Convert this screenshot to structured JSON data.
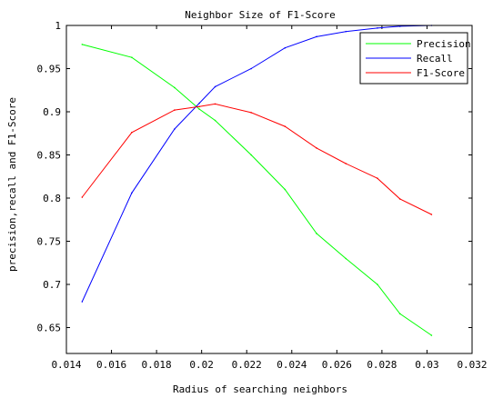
{
  "chart_data": {
    "type": "line",
    "title": "Neighbor Size of F1-Score",
    "xlabel": "Radius of searching neighbors",
    "ylabel": "precision,recall and F1-Score",
    "xlim": [
      0.014,
      0.032
    ],
    "ylim": [
      0.62,
      1.0
    ],
    "xticks": [
      0.014,
      0.016,
      0.018,
      0.02,
      0.022,
      0.024,
      0.026,
      0.028,
      0.03,
      0.032
    ],
    "xtick_labels": [
      "0.014",
      "0.016",
      "0.018",
      "0.02",
      "0.022",
      "0.024",
      "0.026",
      "0.028",
      "0.03",
      "0.032"
    ],
    "yticks": [
      0.65,
      0.7,
      0.75,
      0.8,
      0.85,
      0.9,
      0.95,
      1.0
    ],
    "ytick_labels": [
      "0.65",
      "0.7",
      "0.75",
      "0.8",
      "0.85",
      "0.9",
      "0.95",
      "1"
    ],
    "grid": false,
    "legend_position": "top-right",
    "x": [
      0.0147,
      0.0169,
      0.0188,
      0.0199,
      0.0206,
      0.0222,
      0.0237,
      0.0251,
      0.0264,
      0.0278,
      0.0288,
      0.0302
    ],
    "series": [
      {
        "name": "Precision",
        "color": "#00ff00",
        "values": [
          0.978,
          0.963,
          0.928,
          0.903,
          0.89,
          0.85,
          0.81,
          0.759,
          0.73,
          0.7,
          0.666,
          0.641
        ]
      },
      {
        "name": "Recall",
        "color": "#0000ff",
        "values": [
          0.68,
          0.806,
          0.88,
          0.91,
          0.929,
          0.95,
          0.974,
          0.987,
          0.993,
          0.997,
          0.999,
          1.0
        ]
      },
      {
        "name": "F1-Score",
        "color": "#ff0000",
        "values": [
          0.801,
          0.876,
          0.902,
          0.906,
          0.909,
          0.899,
          0.883,
          0.858,
          0.84,
          0.823,
          0.799,
          0.781
        ]
      }
    ]
  }
}
